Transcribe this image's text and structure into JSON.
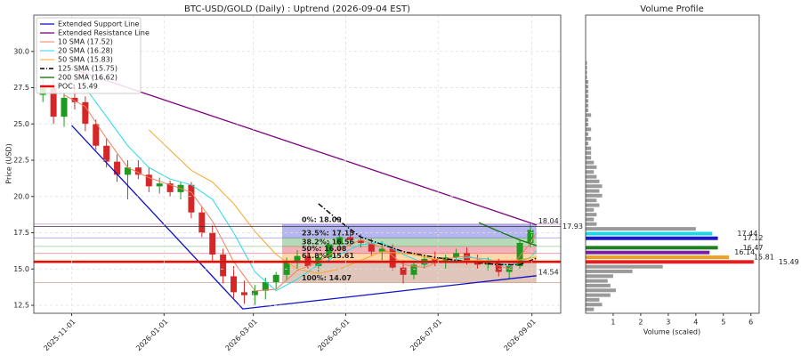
{
  "chart_data": [
    {
      "type": "candlestick",
      "title": "BTC-USD/GOLD (Daily) : Uptrend (2026-09-04 EST)",
      "ylabel": "Price (USD)",
      "xlim": [
        "2025-10-07",
        "2026-09-20"
      ],
      "ylim": [
        11.95,
        32.5
      ],
      "xticks": [
        "2025-11-01",
        "2026-01-01",
        "2026-03-01",
        "2026-05-01",
        "2026-07-01",
        "2026-09-01"
      ],
      "yticks": [
        12.5,
        {
          "value": 15,
          "label": "15.0"
        },
        17.5,
        {
          "value": 20,
          "label": "20.0"
        },
        22.5,
        {
          "value": 25,
          "label": "25.0"
        },
        27.5,
        {
          "value": 30,
          "label": "30.0"
        }
      ],
      "grid": true,
      "legend": "upper left",
      "up_color": "#1e9a1e",
      "down_color": "#d62728",
      "x": [
        "2025-10-13",
        "2025-10-20",
        "2025-10-27",
        "2025-11-03",
        "2025-11-10",
        "2025-11-17",
        "2025-11-24",
        "2025-12-01",
        "2025-12-08",
        "2025-12-15",
        "2025-12-22",
        "2025-12-29",
        "2026-01-05",
        "2026-01-12",
        "2026-01-19",
        "2026-01-26",
        "2026-02-02",
        "2026-02-09",
        "2026-02-16",
        "2026-02-23",
        "2026-03-02",
        "2026-03-09",
        "2026-03-16",
        "2026-03-23",
        "2026-03-30",
        "2026-04-06",
        "2026-04-13",
        "2026-04-20",
        "2026-04-27",
        "2026-05-04",
        "2026-05-11",
        "2026-05-18",
        "2026-05-25",
        "2026-06-01",
        "2026-06-08",
        "2026-06-15",
        "2026-06-22",
        "2026-06-29",
        "2026-07-06",
        "2026-07-13",
        "2026-07-20",
        "2026-07-27",
        "2026-08-03",
        "2026-08-10",
        "2026-08-17",
        "2026-08-24",
        "2026-08-31"
      ],
      "open": [
        27.0,
        27.5,
        25.5,
        26.8,
        26.5,
        25.0,
        23.5,
        22.4,
        21.5,
        22.0,
        21.5,
        20.7,
        20.9,
        20.3,
        20.8,
        18.9,
        17.5,
        16.0,
        14.5,
        13.4,
        13.2,
        13.5,
        14.1,
        14.6,
        15.5,
        15.9,
        15.2,
        15.8,
        16.7,
        17.2,
        17.0,
        16.8,
        16.2,
        16.4,
        15.1,
        14.6,
        15.3,
        15.7,
        15.5,
        15.8,
        16.1,
        15.6,
        15.3,
        15.5,
        14.8,
        15.2,
        16.8
      ],
      "high": [
        28.2,
        28.0,
        27.2,
        27.6,
        26.9,
        25.3,
        24.0,
        22.9,
        22.5,
        22.5,
        22.0,
        21.3,
        21.1,
        21.0,
        21.0,
        19.3,
        18.0,
        16.4,
        15.2,
        14.2,
        13.9,
        14.4,
        14.8,
        15.8,
        16.3,
        16.3,
        16.0,
        16.9,
        17.5,
        17.6,
        17.4,
        17.1,
        16.9,
        16.7,
        15.6,
        15.5,
        16.0,
        16.2,
        16.0,
        16.4,
        16.5,
        16.0,
        15.8,
        15.7,
        15.4,
        17.0,
        18.1
      ],
      "low": [
        26.5,
        25.0,
        24.8,
        26.0,
        24.5,
        23.2,
        22.0,
        21.0,
        19.8,
        21.2,
        20.3,
        20.2,
        20.0,
        19.8,
        18.5,
        17.2,
        15.5,
        14.0,
        13.0,
        12.6,
        12.5,
        12.9,
        13.6,
        14.2,
        14.9,
        15.0,
        14.8,
        15.5,
        16.3,
        16.6,
        16.5,
        15.9,
        15.6,
        14.9,
        14.0,
        14.3,
        15.0,
        15.2,
        15.0,
        15.4,
        15.3,
        15.0,
        14.9,
        14.5,
        14.3,
        15.0,
        16.5
      ],
      "close": [
        27.5,
        25.5,
        26.8,
        26.5,
        25.0,
        23.5,
        22.4,
        21.5,
        22.0,
        21.5,
        20.7,
        20.9,
        20.3,
        20.8,
        18.9,
        17.5,
        16.0,
        14.5,
        13.4,
        13.2,
        13.5,
        14.1,
        14.6,
        15.5,
        15.9,
        15.2,
        15.8,
        16.7,
        17.2,
        17.0,
        16.8,
        16.2,
        16.4,
        15.1,
        14.6,
        15.3,
        15.7,
        15.5,
        15.8,
        16.1,
        15.6,
        15.3,
        15.5,
        14.8,
        15.2,
        16.8,
        17.7
      ],
      "lines": [
        {
          "name": "Extended Support Line",
          "color": "#1010c8",
          "style": "solid",
          "width": 1.3,
          "x": [
            "2025-11-01",
            "2026-02-22",
            "2026-09-04"
          ],
          "values": [
            24.9,
            12.25,
            14.54
          ]
        },
        {
          "name": "Extended Resistance Line",
          "color": "#800080",
          "style": "solid",
          "width": 1.3,
          "x": [
            "2025-11-01",
            "2026-09-04"
          ],
          "values": [
            28.8,
            18.04
          ]
        },
        {
          "name": "10 SMA (17.52)",
          "color": "#f08060",
          "style": "solid",
          "width": 1,
          "x": [
            "2025-10-27",
            "2025-11-10",
            "2025-11-24",
            "2025-12-08",
            "2025-12-22",
            "2026-01-05",
            "2026-01-19",
            "2026-02-02",
            "2026-02-16",
            "2026-03-02",
            "2026-03-16",
            "2026-03-30",
            "2026-04-13",
            "2026-04-27",
            "2026-05-11",
            "2026-05-25",
            "2026-06-08",
            "2026-06-22",
            "2026-07-06",
            "2026-07-20",
            "2026-08-03",
            "2026-08-17",
            "2026-08-31",
            "2026-09-04"
          ],
          "values": [
            27.0,
            26.2,
            24.0,
            22.0,
            21.3,
            20.8,
            20.3,
            18.3,
            15.5,
            13.5,
            13.6,
            14.9,
            15.5,
            16.4,
            17.0,
            16.5,
            15.3,
            15.1,
            15.7,
            15.9,
            15.5,
            15.0,
            16.8,
            17.52
          ]
        },
        {
          "name": "20 SMA (16.28)",
          "color": "#20dde8",
          "style": "solid",
          "width": 1,
          "x": [
            "2025-11-10",
            "2025-11-24",
            "2025-12-08",
            "2025-12-22",
            "2026-01-05",
            "2026-01-19",
            "2026-02-02",
            "2026-02-16",
            "2026-03-02",
            "2026-03-16",
            "2026-03-30",
            "2026-04-13",
            "2026-04-27",
            "2026-05-11",
            "2026-05-25",
            "2026-06-08",
            "2026-06-22",
            "2026-07-06",
            "2026-07-20",
            "2026-08-03",
            "2026-08-17",
            "2026-08-31",
            "2026-09-04"
          ],
          "values": [
            27.5,
            25.5,
            23.5,
            22.0,
            21.2,
            20.8,
            19.8,
            17.5,
            14.8,
            13.5,
            14.3,
            15.3,
            16.0,
            16.7,
            16.8,
            16.0,
            15.4,
            15.5,
            15.8,
            15.7,
            15.2,
            15.8,
            16.28
          ]
        },
        {
          "name": "50 SMA (15.83)",
          "color": "#f5a623",
          "style": "solid",
          "width": 1,
          "x": [
            "2025-12-22",
            "2026-01-05",
            "2026-01-19",
            "2026-02-02",
            "2026-02-16",
            "2026-03-02",
            "2026-03-16",
            "2026-03-30",
            "2026-04-13",
            "2026-04-27",
            "2026-05-11",
            "2026-05-25",
            "2026-06-15",
            "2026-07-06",
            "2026-07-27",
            "2026-08-17",
            "2026-09-04"
          ],
          "values": [
            24.6,
            23.2,
            21.8,
            21.0,
            19.5,
            17.6,
            16.0,
            15.0,
            14.7,
            15.0,
            15.6,
            16.2,
            16.0,
            15.5,
            15.6,
            15.5,
            15.83
          ]
        },
        {
          "name": "125 SMA (15.75)",
          "color": "#000000",
          "style": "dashdot",
          "width": 1.4,
          "x": [
            "2026-04-13",
            "2026-04-27",
            "2026-05-11",
            "2026-05-25",
            "2026-06-08",
            "2026-06-29",
            "2026-07-20",
            "2026-08-10",
            "2026-08-24",
            "2026-09-04"
          ],
          "values": [
            19.5,
            18.3,
            17.2,
            16.7,
            16.2,
            15.8,
            15.5,
            15.3,
            15.3,
            15.75
          ]
        },
        {
          "name": "200 SMA (16.62)",
          "color": "#1a7a1a",
          "style": "solid",
          "width": 1.4,
          "x": [
            "2026-07-28",
            "2026-08-10",
            "2026-08-24",
            "2026-09-04"
          ],
          "values": [
            18.2,
            17.6,
            17.0,
            16.62
          ]
        }
      ],
      "poc": {
        "name": "POC: 15.49",
        "value": 15.49,
        "color": "#e01010"
      },
      "last_price": 17.93,
      "fib_x": [
        "2026-03-20",
        "2026-09-04"
      ],
      "fib_levels": [
        {
          "label": "0%: 18.09",
          "value": 18.09,
          "color": "#800080"
        },
        {
          "label": "23.5%: 17.15",
          "value": 17.15,
          "color": "#2020d0"
        },
        {
          "label": "38.2%: 16.56",
          "value": 16.56,
          "color": "#228b22"
        },
        {
          "label": "50%: 16.08",
          "value": 16.08,
          "color": "#e0102a"
        },
        {
          "label": "61.8%: 15.61",
          "value": 15.61,
          "color": "#ff8c00"
        },
        {
          "label": "100%: 14.07",
          "value": 14.07,
          "color": "#a0522d"
        }
      ]
    },
    {
      "type": "barh",
      "title": "Volume Profile",
      "xlabel": "Volume (scaled)",
      "xlim": [
        0,
        6.3
      ],
      "ylim": [
        11.95,
        32.5
      ],
      "xticks": [
        1,
        2,
        3,
        4,
        5,
        6
      ],
      "color": "#9a9a9a",
      "y": [
        12.22,
        12.55,
        12.88,
        13.2,
        13.53,
        13.86,
        14.18,
        14.51,
        14.84,
        15.16,
        17.77,
        18.1,
        18.42,
        18.75,
        19.08,
        19.4,
        19.73,
        20.06,
        20.38,
        20.71,
        21.04,
        21.36,
        21.69,
        22.02,
        22.34,
        22.67,
        23.0,
        23.32,
        23.65,
        23.98,
        24.3,
        24.63,
        24.96,
        25.28,
        25.61,
        25.94,
        26.26,
        26.59,
        26.92,
        27.24,
        27.57,
        27.9,
        28.22,
        28.55,
        28.88,
        29.2
      ],
      "values": [
        0.3,
        0.6,
        0.5,
        0.9,
        1.1,
        0.9,
        0.8,
        1.0,
        1.7,
        2.8,
        4.0,
        0.4,
        0.3,
        0.4,
        0.3,
        0.5,
        0.4,
        0.6,
        0.5,
        0.6,
        0.5,
        0.4,
        0.3,
        0.4,
        0.3,
        0.2,
        0.2,
        0.2,
        0.1,
        0.2,
        0.1,
        0.2,
        0.1,
        0.1,
        0.2,
        0.1,
        0.1,
        0.1,
        0.1,
        0.1,
        0.1,
        0.1,
        0.05,
        0.05,
        0.05,
        0.05
      ],
      "highlights": [
        {
          "y": 17.44,
          "value": 4.6,
          "color": "#1ad8e6"
        },
        {
          "y": 17.12,
          "value": 4.8,
          "color": "#1a1ac0"
        },
        {
          "y": 16.47,
          "value": 4.8,
          "color": "#1e801e"
        },
        {
          "y": 16.14,
          "value": 4.5,
          "color": "#7b1fa2"
        },
        {
          "y": 15.81,
          "value": 5.2,
          "color": "#f0a020"
        },
        {
          "y": 15.49,
          "value": 6.1,
          "color": "#e02020"
        }
      ]
    }
  ]
}
